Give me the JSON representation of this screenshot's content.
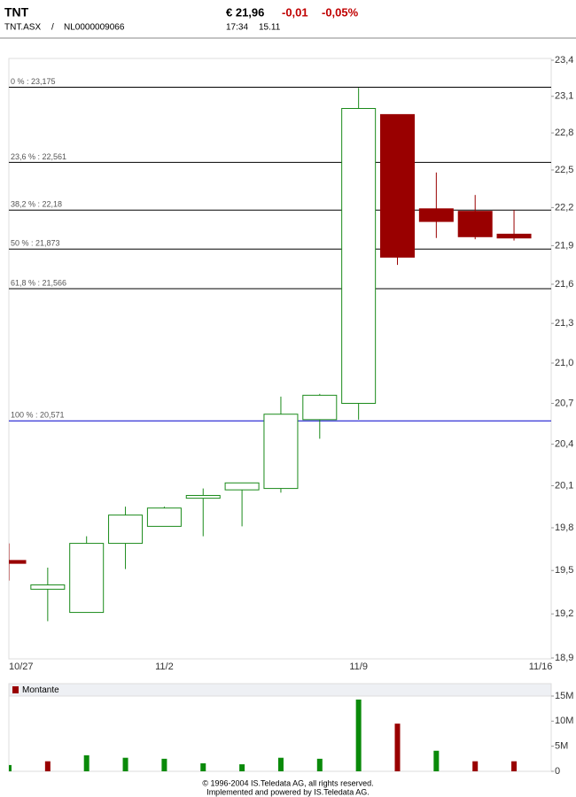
{
  "header": {
    "title": "TNT",
    "price": "€ 21,96",
    "change": "-0,01",
    "change_pct": "-0,05%",
    "symbol": "TNT.ASX",
    "separator": "/",
    "isin": "NL0000009066",
    "time": "17:34",
    "date": "15.11"
  },
  "chart_data": [
    {
      "type": "candlestick",
      "categories": [
        "10/27",
        null,
        null,
        null,
        "11/2",
        null,
        null,
        null,
        null,
        "11/9",
        null,
        null,
        null,
        "11/16"
      ],
      "open": [
        19.57,
        19.37,
        19.21,
        19.69,
        19.81,
        20.01,
        20.07,
        20.08,
        20.58,
        20.7,
        22.95,
        22.19,
        22.17,
        21.99
      ],
      "high": [
        19.69,
        19.52,
        19.74,
        19.95,
        19.95,
        20.08,
        20.12,
        20.75,
        20.77,
        23.17,
        22.95,
        22.48,
        22.3,
        22.18
      ],
      "low": [
        19.43,
        19.15,
        19.21,
        19.51,
        19.81,
        19.74,
        19.81,
        20.05,
        20.44,
        20.58,
        21.75,
        21.96,
        21.95,
        21.94
      ],
      "close": [
        19.55,
        19.4,
        19.69,
        19.89,
        19.94,
        20.03,
        20.12,
        20.62,
        20.76,
        23.0,
        21.81,
        22.09,
        21.97,
        21.96
      ],
      "up_color": "#1a8a1a",
      "down_color": "#990000",
      "log_scale": true,
      "ylim": [
        18.9,
        23.4
      ],
      "yticks": [
        {
          "value": 18.9,
          "label": "18,9"
        },
        {
          "value": 19.2,
          "label": "19,2"
        },
        {
          "value": 19.5,
          "label": "19,5"
        },
        {
          "value": 19.8,
          "label": "19,8"
        },
        {
          "value": 20.1,
          "label": "20,1"
        },
        {
          "value": 20.4,
          "label": "20,4"
        },
        {
          "value": 20.7,
          "label": "20,7"
        },
        {
          "value": 21.0,
          "label": "21,0"
        },
        {
          "value": 21.3,
          "label": "21,3"
        },
        {
          "value": 21.6,
          "label": "21,6"
        },
        {
          "value": 21.9,
          "label": "21,9"
        },
        {
          "value": 22.2,
          "label": "22,2"
        },
        {
          "value": 22.5,
          "label": "22,5"
        },
        {
          "value": 22.8,
          "label": "22,8"
        },
        {
          "value": 23.1,
          "label": "23,1"
        },
        {
          "value": 23.4,
          "label": "23,4"
        }
      ],
      "grid": false,
      "levels": [
        {
          "label": "0 % : 23,175",
          "value": 23.175,
          "color": "#000000"
        },
        {
          "label": "23,6 % : 22,561",
          "value": 22.561,
          "color": "#000000"
        },
        {
          "label": "38,2 % : 22,18",
          "value": 22.18,
          "color": "#000000"
        },
        {
          "label": "50 % : 21,873",
          "value": 21.873,
          "color": "#000000"
        },
        {
          "label": "61,8 % : 21,566",
          "value": 21.566,
          "color": "#000000"
        },
        {
          "label": "100 % : 20,571",
          "value": 20.571,
          "color": "#0000cc"
        }
      ]
    },
    {
      "type": "bar",
      "series": [
        {
          "name": "Montante",
          "color": "#990000",
          "values": [
            1.25,
            2.0,
            3.2,
            2.7,
            2.5,
            1.6,
            1.4,
            2.7,
            2.5,
            14.3,
            9.5,
            4.1,
            2.0,
            2.0
          ],
          "colors": [
            "#0a8a0a",
            "#990000",
            "#0a8a0a",
            "#0a8a0a",
            "#0a8a0a",
            "#0a8a0a",
            "#0a8a0a",
            "#0a8a0a",
            "#0a8a0a",
            "#0a8a0a",
            "#990000",
            "#0a8a0a",
            "#990000",
            "#990000"
          ]
        }
      ],
      "ylim": [
        0,
        15
      ],
      "yticks": [
        0,
        {
          "value": 5,
          "label": "5M"
        },
        {
          "value": 10,
          "label": "10M"
        },
        {
          "value": 15,
          "label": "15M"
        }
      ],
      "legend": "top-left"
    }
  ],
  "footer": [
    "© 1996-2004 IS.Teledata AG, all rights reserved.",
    "Implemented and powered by IS.Teledata AG."
  ]
}
